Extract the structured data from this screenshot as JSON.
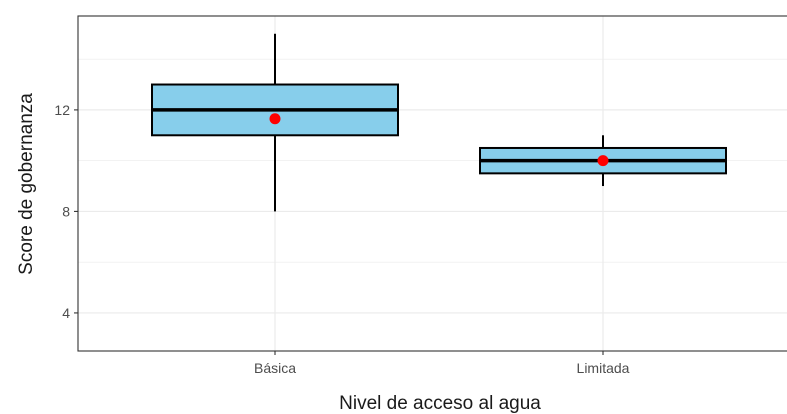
{
  "chart_data": {
    "type": "boxplot",
    "xlabel": "Nivel de acceso al agua",
    "ylabel": "Score de gobernanza",
    "categories": [
      "Básica",
      "Limitada"
    ],
    "yticks": [
      4,
      8,
      12
    ],
    "ytick_labels": [
      "4",
      "8",
      "12"
    ],
    "ylim": [
      2.5,
      15.7
    ],
    "grid": true,
    "boxes": [
      {
        "category": "Básica",
        "whisker_low": 8,
        "q1": 11,
        "median": 12,
        "q3": 13,
        "whisker_high": 15,
        "mean": 11.65
      },
      {
        "category": "Limitada",
        "whisker_low": 9,
        "q1": 9.5,
        "median": 10,
        "q3": 10.5,
        "whisker_high": 11,
        "mean": 10
      }
    ],
    "colors": {
      "box_fill": "#87ceeb",
      "box_outline": "#000000",
      "mean_point": "#ff0000",
      "grid": "#ebebeb",
      "panel_border": "#333333"
    }
  }
}
